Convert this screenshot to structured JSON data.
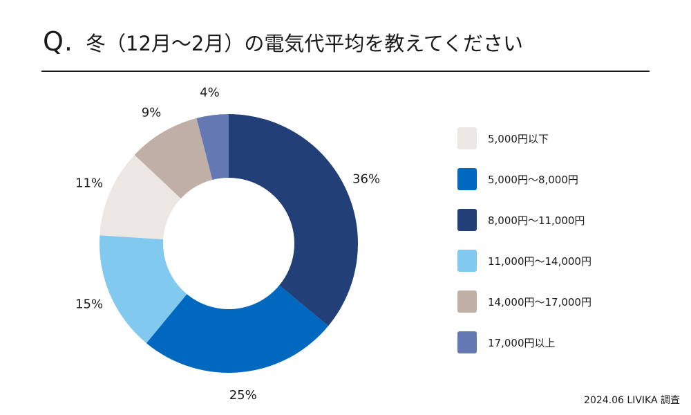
{
  "header": {
    "q_mark": "Q.",
    "question": "冬（12月〜2月）の電気代平均を教えてください"
  },
  "source": "2024.06 LIVIKA 調査",
  "chart_data": {
    "type": "pie",
    "donut": true,
    "legend_position": "right",
    "categories": [
      "5,000円以下",
      "5,000円〜8,000円",
      "8,000円〜11,000円",
      "11,000円〜14,000円",
      "14,000円〜17,000円",
      "17,000円以上"
    ],
    "values": [
      11,
      25,
      36,
      15,
      9,
      4
    ],
    "value_labels": [
      "11%",
      "25%",
      "36%",
      "15%",
      "9%",
      "4%"
    ],
    "colors": [
      "#ece7e2",
      "#0068bf",
      "#233f77",
      "#82c9ef",
      "#bfafa7",
      "#6478b4"
    ],
    "draw_order": [
      2,
      1,
      3,
      0,
      4,
      5
    ]
  }
}
